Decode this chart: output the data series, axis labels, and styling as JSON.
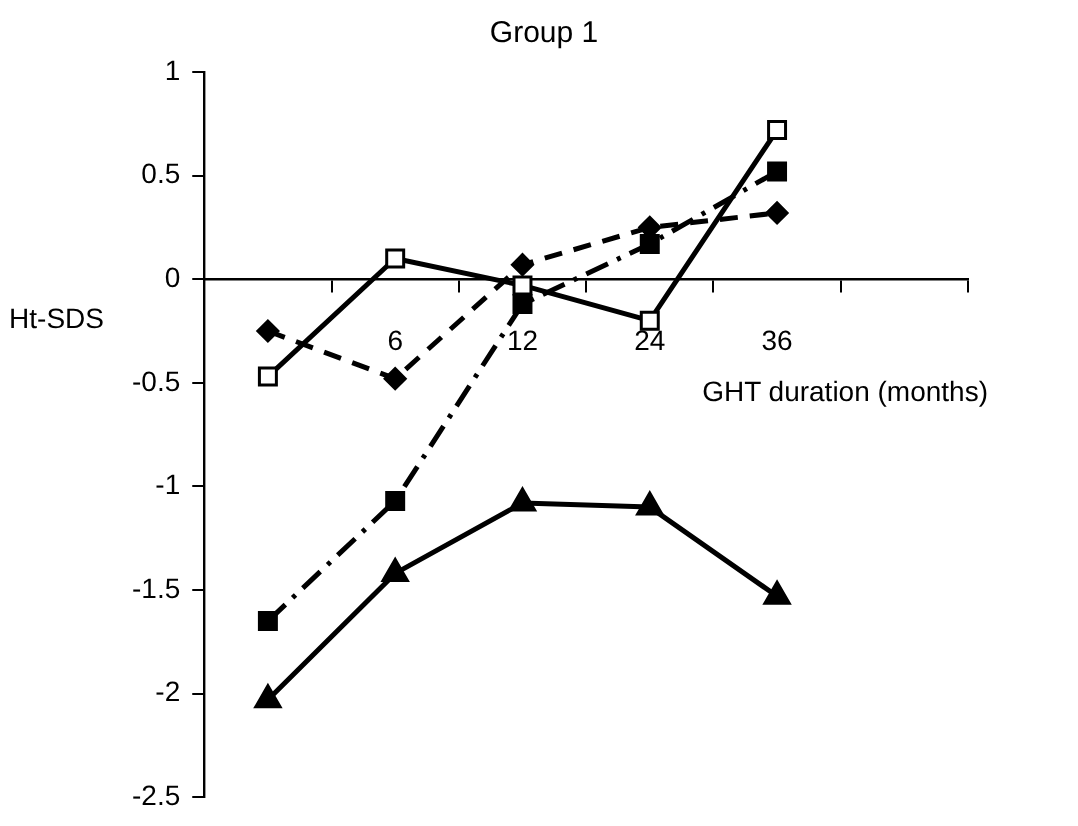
{
  "chart_data": {
    "type": "line",
    "title": "Group 1",
    "xlabel": "GHT duration (months)",
    "ylabel": "Ht-SDS",
    "categories": [
      null,
      "6",
      "12",
      "24",
      "36",
      null
    ],
    "series": [
      {
        "color": "#000000",
        "marker": "diamond",
        "line_style": "dashed",
        "values": [
          -0.25,
          -0.48,
          0.07,
          0.25,
          0.32,
          null
        ]
      },
      {
        "color": "#000000",
        "marker": "square-open",
        "line_style": "solid",
        "values": [
          -0.47,
          0.1,
          -0.03,
          -0.2,
          0.72,
          null
        ]
      },
      {
        "color": "#000000",
        "marker": "square",
        "line_style": "dashdot",
        "values": [
          -1.65,
          -1.07,
          -0.12,
          0.17,
          0.52,
          null
        ]
      },
      {
        "color": "#000000",
        "marker": "triangle",
        "line_style": "solid",
        "values": [
          -2.03,
          -1.42,
          -1.08,
          -1.1,
          -1.53,
          null
        ]
      }
    ],
    "ylim": [
      -2.5,
      1
    ],
    "yticks": [
      -2.5,
      -2,
      -1.5,
      -1,
      -0.5,
      0,
      0.5,
      1
    ],
    "grid": false,
    "legend": false
  }
}
